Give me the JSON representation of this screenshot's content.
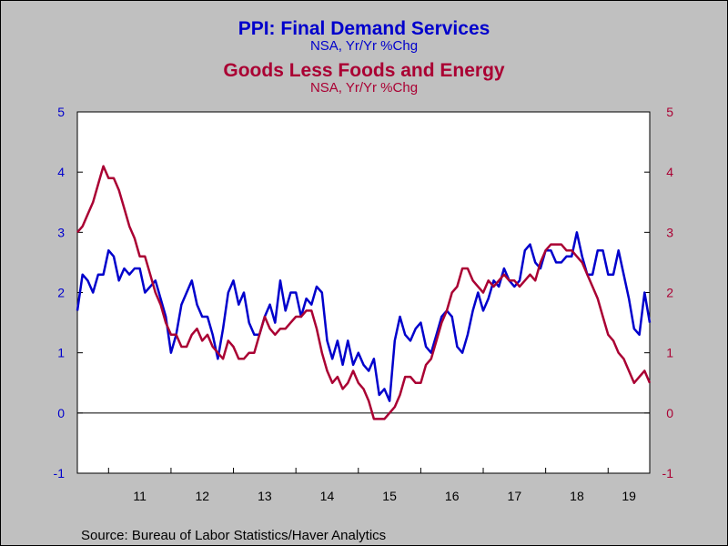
{
  "header": {
    "title1": "PPI: Final Demand Services",
    "subtitle1": "NSA, Yr/Yr %Chg",
    "title2": "Goods Less Foods and Energy",
    "subtitle2": "NSA, Yr/Yr %Chg"
  },
  "footer": {
    "source": "Source:  Bureau of Labor Statistics/Haver Analytics"
  },
  "colors": {
    "background": "#c0c0c0",
    "plot_background": "#ffffff",
    "blue": "#0000cc",
    "red": "#aa0033",
    "axis": "#000000"
  },
  "chart_data": {
    "type": "line",
    "x_start": "2010-07",
    "x_end": "2019-10",
    "x_ticks": [
      {
        "label": "11",
        "year": 2011
      },
      {
        "label": "12",
        "year": 2012
      },
      {
        "label": "13",
        "year": 2013
      },
      {
        "label": "14",
        "year": 2014
      },
      {
        "label": "15",
        "year": 2015
      },
      {
        "label": "16",
        "year": 2016
      },
      {
        "label": "17",
        "year": 2017
      },
      {
        "label": "18",
        "year": 2018
      },
      {
        "label": "19",
        "year": 2019
      }
    ],
    "y_left": {
      "min": -1,
      "max": 5,
      "ticks": [
        "-1",
        "0",
        "1",
        "2",
        "3",
        "4",
        "5"
      ]
    },
    "y_right": {
      "min": -1,
      "max": 5,
      "ticks": [
        "-1",
        "0",
        "1",
        "2",
        "3",
        "4",
        "5"
      ]
    },
    "zero_line": true,
    "grid": false,
    "series": [
      {
        "name": "PPI: Final Demand Services",
        "color": "#0000cc",
        "axis": "left",
        "values": [
          1.7,
          2.3,
          2.2,
          2.0,
          2.3,
          2.3,
          2.7,
          2.6,
          2.2,
          2.4,
          2.3,
          2.4,
          2.4,
          2.0,
          2.1,
          2.2,
          1.9,
          1.6,
          1.0,
          1.3,
          1.8,
          2.0,
          2.2,
          1.8,
          1.6,
          1.6,
          1.3,
          0.9,
          1.4,
          2.0,
          2.2,
          1.8,
          2.0,
          1.5,
          1.3,
          1.3,
          1.6,
          1.8,
          1.5,
          2.2,
          1.7,
          2.0,
          2.0,
          1.6,
          1.9,
          1.8,
          2.1,
          2.0,
          1.2,
          0.9,
          1.2,
          0.8,
          1.2,
          0.8,
          1.0,
          0.8,
          0.7,
          0.9,
          0.3,
          0.4,
          0.2,
          1.2,
          1.6,
          1.3,
          1.2,
          1.4,
          1.5,
          1.1,
          1.0,
          1.3,
          1.6,
          1.7,
          1.6,
          1.1,
          1.0,
          1.3,
          1.7,
          2.0,
          1.7,
          1.9,
          2.2,
          2.1,
          2.4,
          2.2,
          2.1,
          2.2,
          2.7,
          2.8,
          2.5,
          2.4,
          2.7,
          2.7,
          2.5,
          2.5,
          2.6,
          2.6,
          3.0,
          2.6,
          2.3,
          2.3,
          2.7,
          2.7,
          2.3,
          2.3,
          2.7,
          2.3,
          1.9,
          1.4,
          1.3,
          2.0,
          1.5
        ]
      },
      {
        "name": "Goods Less Foods and Energy",
        "color": "#aa0033",
        "axis": "right",
        "values": [
          3.0,
          3.1,
          3.3,
          3.5,
          3.8,
          4.1,
          3.9,
          3.9,
          3.7,
          3.4,
          3.1,
          2.9,
          2.6,
          2.6,
          2.3,
          2.0,
          1.8,
          1.5,
          1.3,
          1.3,
          1.1,
          1.1,
          1.3,
          1.4,
          1.2,
          1.3,
          1.1,
          1.0,
          0.9,
          1.2,
          1.1,
          0.9,
          0.9,
          1.0,
          1.0,
          1.3,
          1.6,
          1.4,
          1.3,
          1.4,
          1.4,
          1.5,
          1.6,
          1.6,
          1.7,
          1.7,
          1.4,
          1.0,
          0.7,
          0.5,
          0.6,
          0.4,
          0.5,
          0.7,
          0.5,
          0.4,
          0.2,
          -0.1,
          -0.1,
          -0.1,
          0.0,
          0.1,
          0.3,
          0.6,
          0.6,
          0.5,
          0.5,
          0.8,
          0.9,
          1.2,
          1.5,
          1.7,
          2.0,
          2.1,
          2.4,
          2.4,
          2.2,
          2.1,
          2.0,
          2.2,
          2.1,
          2.2,
          2.3,
          2.2,
          2.2,
          2.1,
          2.2,
          2.3,
          2.2,
          2.5,
          2.7,
          2.8,
          2.8,
          2.8,
          2.7,
          2.7,
          2.6,
          2.5,
          2.3,
          2.1,
          1.9,
          1.6,
          1.3,
          1.2,
          1.0,
          0.9,
          0.7,
          0.5,
          0.6,
          0.7,
          0.5
        ]
      }
    ]
  }
}
